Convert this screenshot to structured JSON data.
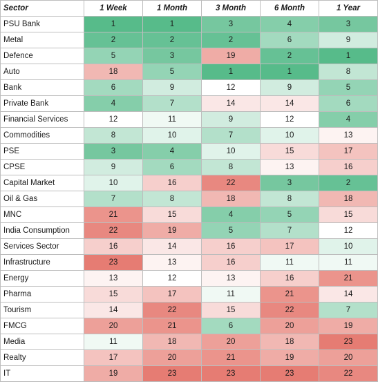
{
  "chart_data": {
    "type": "table",
    "columns": [
      "Sector",
      "1 Week",
      "1 Month",
      "3 Month",
      "6 Month",
      "1 Year"
    ],
    "rows": [
      {
        "sector": "PSU Bank",
        "ranks": [
          1,
          1,
          3,
          4,
          3
        ]
      },
      {
        "sector": "Metal",
        "ranks": [
          2,
          2,
          2,
          6,
          9
        ]
      },
      {
        "sector": "Defence",
        "ranks": [
          5,
          3,
          19,
          2,
          1
        ]
      },
      {
        "sector": "Auto",
        "ranks": [
          18,
          5,
          1,
          1,
          8
        ]
      },
      {
        "sector": "Bank",
        "ranks": [
          6,
          9,
          12,
          9,
          5
        ]
      },
      {
        "sector": "Private Bank",
        "ranks": [
          4,
          7,
          14,
          14,
          6
        ]
      },
      {
        "sector": "Financial Services",
        "ranks": [
          12,
          11,
          9,
          12,
          4
        ]
      },
      {
        "sector": "Commodities",
        "ranks": [
          8,
          10,
          7,
          10,
          13
        ]
      },
      {
        "sector": "PSE",
        "ranks": [
          3,
          4,
          10,
          15,
          17
        ]
      },
      {
        "sector": "CPSE",
        "ranks": [
          9,
          6,
          8,
          13,
          16
        ]
      },
      {
        "sector": "Capital Market",
        "ranks": [
          10,
          16,
          22,
          3,
          2
        ]
      },
      {
        "sector": "Oil & Gas",
        "ranks": [
          7,
          8,
          18,
          8,
          18
        ]
      },
      {
        "sector": "MNC",
        "ranks": [
          21,
          15,
          4,
          5,
          15
        ]
      },
      {
        "sector": "India Consumption",
        "ranks": [
          22,
          19,
          5,
          7,
          12
        ]
      },
      {
        "sector": "Services Sector",
        "ranks": [
          16,
          14,
          16,
          17,
          10
        ]
      },
      {
        "sector": "Infrastructure",
        "ranks": [
          23,
          13,
          16,
          11,
          11
        ]
      },
      {
        "sector": "Energy",
        "ranks": [
          13,
          12,
          13,
          16,
          21
        ]
      },
      {
        "sector": "Pharma",
        "ranks": [
          15,
          17,
          11,
          21,
          14
        ]
      },
      {
        "sector": "Tourism",
        "ranks": [
          14,
          22,
          15,
          22,
          7
        ]
      },
      {
        "sector": "FMCG",
        "ranks": [
          20,
          21,
          6,
          20,
          19
        ]
      },
      {
        "sector": "Media",
        "ranks": [
          11,
          18,
          20,
          18,
          23
        ]
      },
      {
        "sector": "Realty",
        "ranks": [
          17,
          20,
          21,
          19,
          20
        ]
      },
      {
        "sector": "IT",
        "ranks": [
          19,
          23,
          23,
          23,
          22
        ]
      }
    ],
    "color_scale": {
      "best_color": "#57bb8a",
      "mid_color": "#ffffff",
      "worst_color": "#e67c73",
      "best_rank": 1,
      "mid_rank": 12,
      "worst_rank": 23
    }
  }
}
